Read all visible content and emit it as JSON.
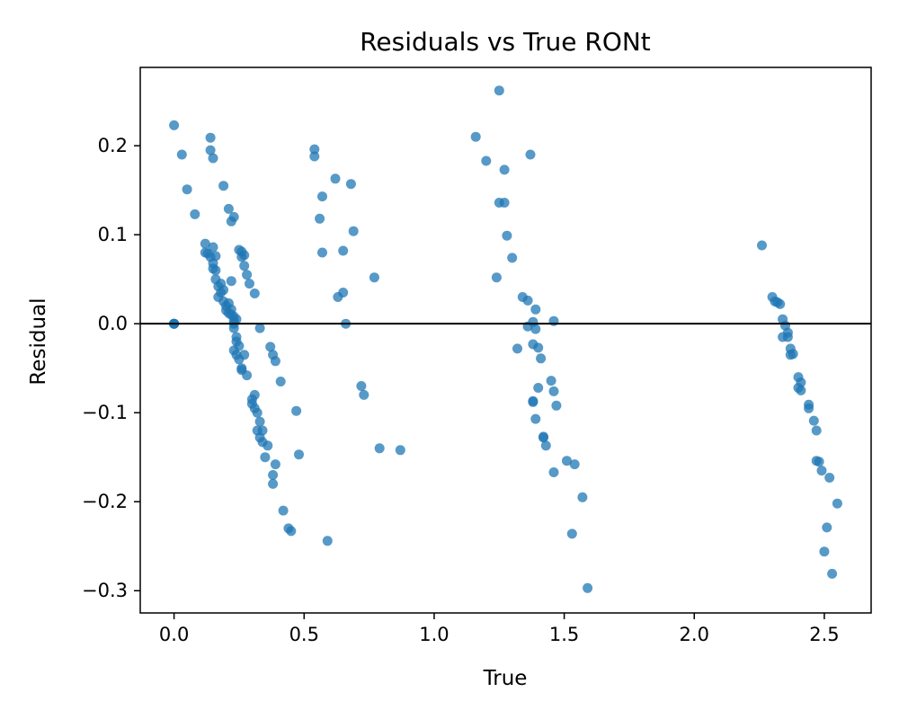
{
  "chart_data": {
    "type": "scatter",
    "title": "Residuals vs True RONt",
    "xlabel": "True",
    "ylabel": "Residual",
    "xlim": [
      -0.13,
      2.68
    ],
    "ylim": [
      -0.325,
      0.288
    ],
    "xticks": [
      0.0,
      0.5,
      1.0,
      1.5,
      2.0,
      2.5
    ],
    "xtick_labels": [
      "0.0",
      "0.5",
      "1.0",
      "1.5",
      "2.0",
      "2.5"
    ],
    "yticks": [
      -0.3,
      -0.2,
      -0.1,
      0.0,
      0.1,
      0.2
    ],
    "ytick_labels": [
      "−0.3",
      "−0.2",
      "−0.1",
      "0.0",
      "0.1",
      "0.2"
    ],
    "grid": false,
    "reference_line_y": 0.0,
    "point_color": "#1f77b4",
    "points": [
      [
        0.0,
        0.223
      ],
      [
        0.0,
        0.0
      ],
      [
        0.0,
        0.0
      ],
      [
        0.0,
        0.0
      ],
      [
        0.0,
        0.0
      ],
      [
        0.03,
        0.19
      ],
      [
        0.05,
        0.151
      ],
      [
        0.08,
        0.123
      ],
      [
        0.12,
        0.09
      ],
      [
        0.12,
        0.08
      ],
      [
        0.13,
        0.079
      ],
      [
        0.14,
        0.209
      ],
      [
        0.14,
        0.195
      ],
      [
        0.15,
        0.186
      ],
      [
        0.14,
        0.075
      ],
      [
        0.15,
        0.086
      ],
      [
        0.16,
        0.076
      ],
      [
        0.15,
        0.068
      ],
      [
        0.16,
        0.06
      ],
      [
        0.15,
        0.062
      ],
      [
        0.16,
        0.05
      ],
      [
        0.17,
        0.042
      ],
      [
        0.18,
        0.045
      ],
      [
        0.17,
        0.03
      ],
      [
        0.18,
        0.035
      ],
      [
        0.19,
        0.038
      ],
      [
        0.19,
        0.155
      ],
      [
        0.21,
        0.129
      ],
      [
        0.22,
        0.115
      ],
      [
        0.23,
        0.12
      ],
      [
        0.22,
        0.048
      ],
      [
        0.19,
        0.025
      ],
      [
        0.2,
        0.02
      ],
      [
        0.2,
        0.015
      ],
      [
        0.21,
        0.023
      ],
      [
        0.21,
        0.012
      ],
      [
        0.22,
        0.016
      ],
      [
        0.22,
        0.01
      ],
      [
        0.23,
        0.008
      ],
      [
        0.23,
        0.003
      ],
      [
        0.23,
        0.0
      ],
      [
        0.24,
        0.005
      ],
      [
        0.23,
        -0.005
      ],
      [
        0.24,
        -0.015
      ],
      [
        0.24,
        -0.02
      ],
      [
        0.23,
        -0.03
      ],
      [
        0.24,
        -0.035
      ],
      [
        0.25,
        -0.025
      ],
      [
        0.25,
        -0.04
      ],
      [
        0.26,
        -0.05
      ],
      [
        0.26,
        -0.052
      ],
      [
        0.27,
        -0.035
      ],
      [
        0.28,
        -0.058
      ],
      [
        0.25,
        0.083
      ],
      [
        0.26,
        0.081
      ],
      [
        0.27,
        0.077
      ],
      [
        0.26,
        0.075
      ],
      [
        0.27,
        0.065
      ],
      [
        0.28,
        0.055
      ],
      [
        0.29,
        0.045
      ],
      [
        0.31,
        0.034
      ],
      [
        0.33,
        -0.005
      ],
      [
        0.3,
        -0.085
      ],
      [
        0.31,
        -0.08
      ],
      [
        0.3,
        -0.09
      ],
      [
        0.31,
        -0.095
      ],
      [
        0.32,
        -0.1
      ],
      [
        0.33,
        -0.11
      ],
      [
        0.32,
        -0.12
      ],
      [
        0.34,
        -0.12
      ],
      [
        0.33,
        -0.128
      ],
      [
        0.34,
        -0.133
      ],
      [
        0.36,
        -0.137
      ],
      [
        0.35,
        -0.15
      ],
      [
        0.37,
        -0.026
      ],
      [
        0.38,
        -0.035
      ],
      [
        0.39,
        -0.042
      ],
      [
        0.41,
        -0.065
      ],
      [
        0.47,
        -0.098
      ],
      [
        0.39,
        -0.158
      ],
      [
        0.38,
        -0.17
      ],
      [
        0.38,
        -0.18
      ],
      [
        0.42,
        -0.21
      ],
      [
        0.44,
        -0.23
      ],
      [
        0.45,
        -0.233
      ],
      [
        0.48,
        -0.147
      ],
      [
        0.54,
        0.196
      ],
      [
        0.54,
        0.188
      ],
      [
        0.57,
        0.143
      ],
      [
        0.56,
        0.118
      ],
      [
        0.57,
        0.08
      ],
      [
        0.59,
        -0.244
      ],
      [
        0.62,
        0.163
      ],
      [
        0.68,
        0.157
      ],
      [
        0.69,
        0.104
      ],
      [
        0.65,
        0.082
      ],
      [
        0.65,
        0.035
      ],
      [
        0.63,
        0.03
      ],
      [
        0.66,
        0.0
      ],
      [
        0.72,
        -0.07
      ],
      [
        0.73,
        -0.08
      ],
      [
        0.77,
        0.052
      ],
      [
        0.79,
        -0.14
      ],
      [
        0.87,
        -0.142
      ],
      [
        1.16,
        0.21
      ],
      [
        1.2,
        0.183
      ],
      [
        1.25,
        0.262
      ],
      [
        1.27,
        0.173
      ],
      [
        1.37,
        0.19
      ],
      [
        1.25,
        0.136
      ],
      [
        1.27,
        0.136
      ],
      [
        1.28,
        0.099
      ],
      [
        1.3,
        0.074
      ],
      [
        1.24,
        0.052
      ],
      [
        1.34,
        0.03
      ],
      [
        1.36,
        0.026
      ],
      [
        1.39,
        0.016
      ],
      [
        1.36,
        -0.003
      ],
      [
        1.38,
        0.002
      ],
      [
        1.39,
        -0.006
      ],
      [
        1.46,
        0.003
      ],
      [
        1.32,
        -0.028
      ],
      [
        1.38,
        -0.023
      ],
      [
        1.4,
        -0.027
      ],
      [
        1.41,
        -0.039
      ],
      [
        1.45,
        -0.064
      ],
      [
        1.46,
        -0.076
      ],
      [
        1.4,
        -0.072
      ],
      [
        1.38,
        -0.087
      ],
      [
        1.38,
        -0.088
      ],
      [
        1.47,
        -0.092
      ],
      [
        1.39,
        -0.107
      ],
      [
        1.42,
        -0.127
      ],
      [
        1.42,
        -0.128
      ],
      [
        1.43,
        -0.137
      ],
      [
        1.46,
        -0.167
      ],
      [
        1.51,
        -0.154
      ],
      [
        1.54,
        -0.158
      ],
      [
        1.57,
        -0.195
      ],
      [
        1.53,
        -0.236
      ],
      [
        1.59,
        -0.297
      ],
      [
        2.26,
        0.088
      ],
      [
        2.3,
        0.03
      ],
      [
        2.31,
        0.025
      ],
      [
        2.32,
        0.024
      ],
      [
        2.33,
        0.022
      ],
      [
        2.34,
        0.005
      ],
      [
        2.35,
        -0.002
      ],
      [
        2.36,
        -0.01
      ],
      [
        2.34,
        -0.015
      ],
      [
        2.36,
        -0.015
      ],
      [
        2.37,
        -0.028
      ],
      [
        2.38,
        -0.034
      ],
      [
        2.37,
        -0.035
      ],
      [
        2.4,
        -0.06
      ],
      [
        2.41,
        -0.066
      ],
      [
        2.4,
        -0.072
      ],
      [
        2.41,
        -0.075
      ],
      [
        2.44,
        -0.091
      ],
      [
        2.44,
        -0.095
      ],
      [
        2.46,
        -0.109
      ],
      [
        2.47,
        -0.12
      ],
      [
        2.47,
        -0.154
      ],
      [
        2.48,
        -0.155
      ],
      [
        2.49,
        -0.165
      ],
      [
        2.52,
        -0.173
      ],
      [
        2.55,
        -0.202
      ],
      [
        2.51,
        -0.229
      ],
      [
        2.5,
        -0.256
      ],
      [
        2.53,
        -0.281
      ]
    ]
  }
}
